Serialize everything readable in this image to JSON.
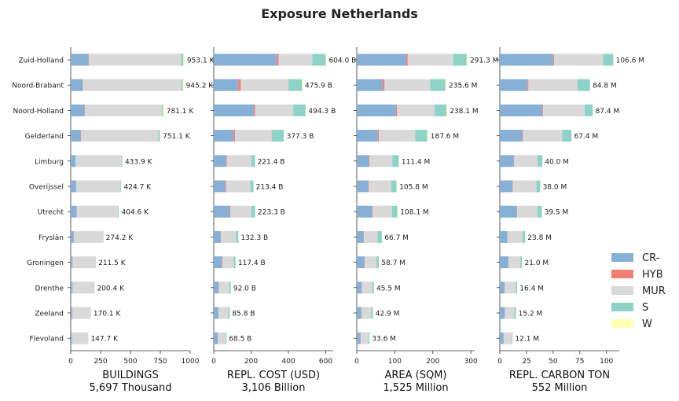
{
  "title": "Exposure Netherlands",
  "chart_data": {
    "type": "bar",
    "orientation": "horizontal",
    "stacked": true,
    "title": "Exposure Netherlands",
    "categories": [
      "Zuid-Holland",
      "Noord-Brabant",
      "Noord-Holland",
      "Gelderland",
      "Limburg",
      "Overijssel",
      "Utrecht",
      "Fryslân",
      "Groningen",
      "Drenthe",
      "Zeeland",
      "Flevoland"
    ],
    "legend": {
      "position": "right",
      "entries": [
        {
          "name": "CR-",
          "color": "#86b0d6"
        },
        {
          "name": "HYB",
          "color": "#f47e72"
        },
        {
          "name": "MUR",
          "color": "#d9d9d9"
        },
        {
          "name": "S",
          "color": "#8dd3c7"
        },
        {
          "name": "W",
          "color": "#ffffb3"
        }
      ]
    },
    "panels": [
      {
        "xlabel": "BUILDINGS",
        "total_label": "5,697 Thousand",
        "xlim": [
          0,
          1000
        ],
        "xticks": [
          0,
          250,
          500,
          750,
          1000
        ],
        "labels": [
          "953.1 K",
          "945.2 K",
          "781.1 K",
          "751.1 K",
          "433.9 K",
          "424.7 K",
          "404.6 K",
          "274.2 K",
          "211.5 K",
          "200.4 K",
          "170.1 K",
          "147.7 K"
        ],
        "series": [
          {
            "name": "CR-",
            "values": [
              150,
              100,
              115,
              85,
              40,
              45,
              50,
              25,
              15,
              15,
              10,
              10
            ]
          },
          {
            "name": "HYB",
            "values": [
              3,
              3,
              3,
              2,
              1,
              1,
              1,
              1,
              1,
              1,
              3,
              1
            ]
          },
          {
            "name": "MUR",
            "values": [
              770,
              825,
              645,
              645,
              385,
              370,
              345,
              245,
              193,
              183,
              155,
              135
            ]
          },
          {
            "name": "S",
            "values": [
              20,
              10,
              10,
              14,
              6,
              6,
              6,
              3,
              2,
              1,
              1,
              1
            ]
          },
          {
            "name": "W",
            "values": [
              10.1,
              7.2,
              8.1,
              5.1,
              1.9,
              2.7,
              2.6,
              0.2,
              0.5,
              0.4,
              1.1,
              0.7
            ]
          }
        ]
      },
      {
        "xlabel": "REPL. COST (USD)",
        "total_label": "3,106 Billion",
        "xlim": [
          0,
          640
        ],
        "xticks": [
          0,
          200,
          400,
          600
        ],
        "labels": [
          "604.0 B",
          "475.9 B",
          "494.3 B",
          "377.3 B",
          "221.4 B",
          "213.4 B",
          "223.3 B",
          "132.3 B",
          "117.4 B",
          "92.0 B",
          "85.8 B",
          "68.5 B"
        ],
        "series": [
          {
            "name": "CR-",
            "values": [
              338,
              131,
              215,
              106,
              66,
              61,
              86,
              37,
              44,
              26,
              24,
              21
            ]
          },
          {
            "name": "HYB",
            "values": [
              10,
              14,
              6,
              8,
              4,
              4,
              3,
              2,
              2,
              1,
              2,
              1
            ]
          },
          {
            "name": "MUR",
            "values": [
              180,
              255,
              205,
              196,
              131,
              131,
              112,
              80,
              60,
              56,
              51,
              41
            ]
          },
          {
            "name": "S",
            "values": [
              72,
              73,
              66,
              65,
              20,
              17,
              21,
              13,
              11,
              8.6,
              8.5,
              5.2
            ]
          },
          {
            "name": "W",
            "values": [
              4,
              2.9,
              2.3,
              2.3,
              0.4,
              0.4,
              1.3,
              0.3,
              0.4,
              0.4,
              0.3,
              0.3
            ]
          }
        ]
      },
      {
        "xlabel": "AREA (SQM)",
        "total_label": "1,525 Million",
        "xlim": [
          0,
          310
        ],
        "xticks": [
          0,
          100,
          200,
          300
        ],
        "labels": [
          "291.3 M",
          "235.6 M",
          "238.1 M",
          "187.6 M",
          "111.4 M",
          "105.8 M",
          "108.1 M",
          "66.7 M",
          "58.7 M",
          "45.5 M",
          "42.9 M",
          "33.6 M"
        ],
        "series": [
          {
            "name": "CR-",
            "values": [
              130,
              68,
              103,
              55,
              32,
              30,
              40,
              18,
              20,
              13,
              12,
              10
            ]
          },
          {
            "name": "HYB",
            "values": [
              4,
              5,
              3,
              3,
              1.5,
              1.5,
              1.5,
              1,
              1,
              0.5,
              1,
              0.5
            ]
          },
          {
            "name": "MUR",
            "values": [
              120,
              120,
              98,
              96,
              60,
              59,
              51,
              36,
              31,
              27,
              25,
              20
            ]
          },
          {
            "name": "S",
            "values": [
              35,
              40,
              32,
              31,
              17,
              14,
              14,
              11,
              6,
              4.5,
              4.5,
              2.8
            ]
          },
          {
            "name": "W",
            "values": [
              2.3,
              2.6,
              2.1,
              2.6,
              0.9,
              1.3,
              1.6,
              0.7,
              0.7,
              0.5,
              0.4,
              0.3
            ]
          }
        ]
      },
      {
        "xlabel": "REPL. CARBON TON",
        "total_label": "552 Million",
        "xlim": [
          0,
          112
        ],
        "xticks": [
          0,
          25,
          50,
          75,
          100
        ],
        "labels": [
          "106.6 M",
          "84.8 M",
          "87.4 M",
          "67.4 M",
          "40.0 M",
          "38.0 M",
          "39.5 M",
          "23.8 M",
          "21.0 M",
          "16.4 M",
          "15.2 M",
          "12.1 M"
        ],
        "series": [
          {
            "name": "CR-",
            "values": [
              50,
              26,
              40,
              21,
              13,
              12,
              16,
              7,
              8,
              4.5,
              4.5,
              3.5
            ]
          },
          {
            "name": "HYB",
            "values": [
              0.8,
              0.8,
              0.6,
              0.6,
              0.3,
              0.3,
              0.3,
              0.2,
              0.2,
              0.1,
              0.2,
              0.1
            ]
          },
          {
            "name": "MUR",
            "values": [
              46,
              46,
              39,
              37,
              22,
              22,
              19,
              14,
              11,
              10.5,
              9,
              7.8
            ]
          },
          {
            "name": "S",
            "values": [
              9.6,
              11.8,
              7.6,
              8.6,
              4.6,
              3.6,
              4.1,
              2.5,
              1.7,
              1.2,
              1.4,
              0.6
            ]
          },
          {
            "name": "W",
            "values": [
              0.2,
              0.2,
              0.2,
              0.2,
              0.1,
              0.1,
              0.1,
              0.1,
              0.1,
              0.1,
              0.1,
              0.1
            ]
          }
        ]
      }
    ]
  }
}
